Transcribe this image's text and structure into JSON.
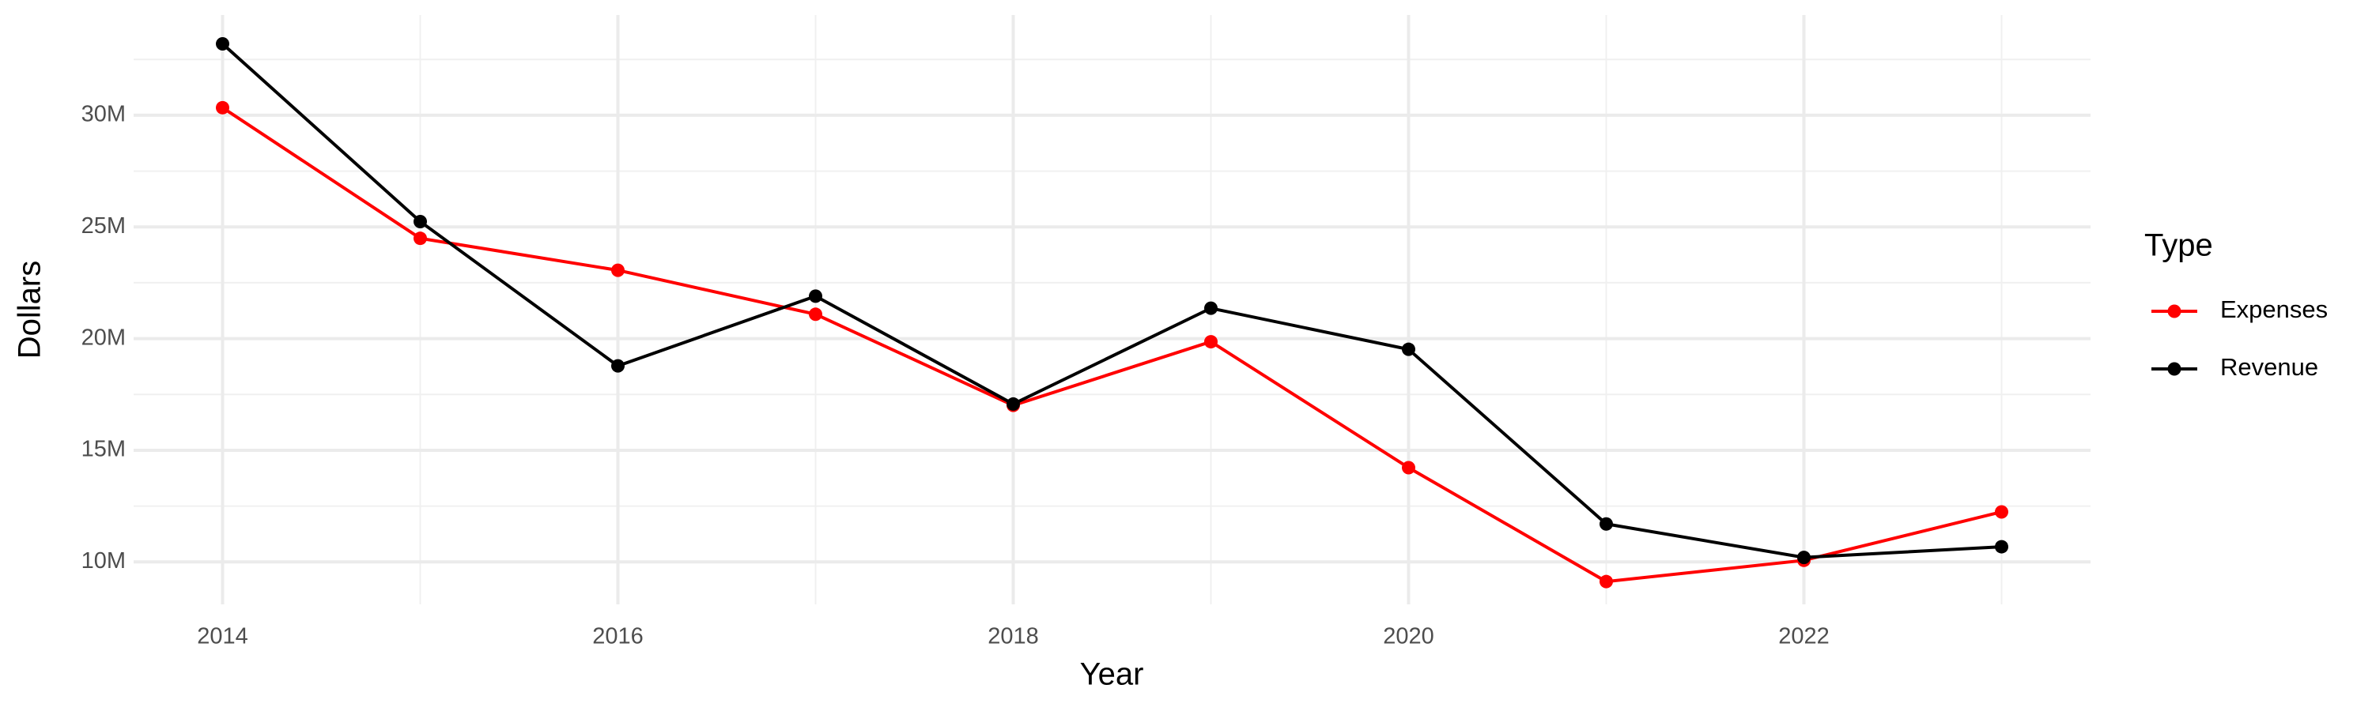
{
  "chart_data": {
    "type": "line",
    "x_label": "Year",
    "y_label": "Dollars",
    "legend_title": "Type",
    "x": [
      2014,
      2015,
      2016,
      2017,
      2018,
      2019,
      2020,
      2021,
      2022,
      2023
    ],
    "series": [
      {
        "name": "Expenses",
        "color": "#ff0000",
        "values": [
          30340000,
          24490000,
          23060000,
          21090000,
          17010000,
          19860000,
          14220000,
          9120000,
          10070000,
          12240000
        ]
      },
      {
        "name": "Revenue",
        "color": "#000000",
        "values": [
          33200000,
          25240000,
          18780000,
          21900000,
          17070000,
          21360000,
          19520000,
          11700000,
          10200000,
          10680000
        ]
      }
    ],
    "xlim": [
      2013.55,
      2023.45
    ],
    "xticks": [
      2014,
      2016,
      2018,
      2020,
      2022
    ],
    "ylim": [
      8100000,
      34490000
    ],
    "yticks": [
      {
        "value": 10000000,
        "label": "10M"
      },
      {
        "value": 15000000,
        "label": "15M"
      },
      {
        "value": 20000000,
        "label": "20M"
      },
      {
        "value": 25000000,
        "label": "25M"
      },
      {
        "value": 30000000,
        "label": "30M"
      }
    ],
    "grid": true,
    "legend_position": "right"
  }
}
